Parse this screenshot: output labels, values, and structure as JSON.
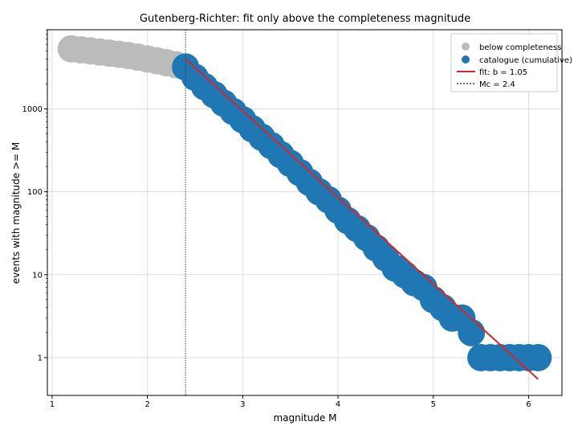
{
  "chart_data": {
    "type": "scatter",
    "title": "Gutenberg-Richter: fit only above the completeness magnitude",
    "xlabel": "magnitude M",
    "ylabel": "events with magnitude >= M",
    "xlim": [
      0.95,
      6.35
    ],
    "ylim": [
      0.35,
      9000
    ],
    "yscale": "log",
    "grid": true,
    "legend_position": "top-right",
    "x_ticks": [
      1,
      2,
      3,
      4,
      5,
      6
    ],
    "y_ticks": [
      {
        "value": 1,
        "label": "1"
      },
      {
        "value": 10,
        "label": "10"
      },
      {
        "value": 100,
        "label": "100"
      },
      {
        "value": 1000,
        "label": "1000"
      }
    ],
    "series": [
      {
        "name": "below completeness",
        "color": "#bbbbbb",
        "x": [
          1.2,
          1.3,
          1.4,
          1.5,
          1.6,
          1.7,
          1.8,
          1.9,
          2.0,
          2.1,
          2.2,
          2.3
        ],
        "y": [
          5300,
          5150,
          5000,
          4850,
          4700,
          4550,
          4400,
          4200,
          4000,
          3800,
          3600,
          3400
        ]
      },
      {
        "name": "catalogue (cumulative)",
        "color": "#1f77b4",
        "x": [
          2.4,
          2.5,
          2.6,
          2.7,
          2.8,
          2.9,
          3.0,
          3.1,
          3.2,
          3.3,
          3.4,
          3.5,
          3.6,
          3.7,
          3.8,
          3.9,
          4.0,
          4.1,
          4.2,
          4.3,
          4.4,
          4.5,
          4.6,
          4.7,
          4.8,
          4.9,
          5.0,
          5.1,
          5.2,
          5.3,
          5.4,
          5.5,
          5.6,
          5.7,
          5.8,
          5.9,
          6.0,
          6.1
        ],
        "y": [
          3200,
          2400,
          1850,
          1480,
          1170,
          930,
          740,
          575,
          455,
          360,
          280,
          220,
          170,
          130,
          100,
          80,
          60,
          45,
          36,
          28,
          21,
          16,
          12,
          10,
          8,
          7,
          5,
          4,
          3,
          3,
          2,
          1,
          1,
          1,
          1,
          1,
          1,
          1
        ]
      }
    ],
    "fit": {
      "name": "fit: b = 1.05",
      "color": "#d62728",
      "x": [
        2.4,
        6.1
      ],
      "y": [
        4000,
        0.55
      ]
    },
    "completeness": {
      "name": "Mc = 2.4",
      "color": "#333366",
      "value": 2.4
    }
  }
}
